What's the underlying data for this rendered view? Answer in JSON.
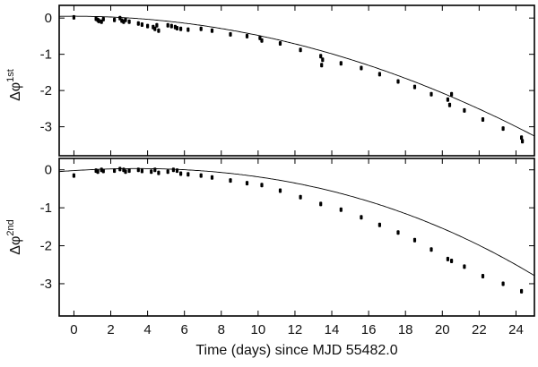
{
  "chart_data": [
    {
      "type": "scatter",
      "panel": "top",
      "ylabel": "Δφ",
      "ylabel_sup": "1st",
      "xlim": [
        -0.8,
        25
      ],
      "ylim": [
        -3.8,
        0.35
      ],
      "yticks": [
        0,
        -1,
        -2,
        -3
      ],
      "ytick_labels": [
        "0",
        "-1",
        "-2",
        "-3"
      ],
      "model": {
        "type": "quadratic",
        "a": -0.00529,
        "b": 0,
        "c": 0.05
      },
      "series": [
        {
          "name": "Δφ 1st",
          "points": [
            [
              0.0,
              0.02
            ],
            [
              1.2,
              -0.02
            ],
            [
              1.3,
              -0.05
            ],
            [
              1.35,
              -0.08
            ],
            [
              1.5,
              -0.1
            ],
            [
              1.6,
              -0.03
            ],
            [
              2.2,
              -0.05
            ],
            [
              2.5,
              0.0
            ],
            [
              2.6,
              -0.07
            ],
            [
              2.7,
              -0.1
            ],
            [
              2.8,
              -0.05
            ],
            [
              3.0,
              -0.1
            ],
            [
              3.5,
              -0.15
            ],
            [
              3.7,
              -0.18
            ],
            [
              4.0,
              -0.22
            ],
            [
              4.3,
              -0.25
            ],
            [
              4.4,
              -0.3
            ],
            [
              4.5,
              -0.2
            ],
            [
              4.6,
              -0.35
            ],
            [
              5.1,
              -0.2
            ],
            [
              5.3,
              -0.22
            ],
            [
              5.5,
              -0.25
            ],
            [
              5.6,
              -0.28
            ],
            [
              5.8,
              -0.3
            ],
            [
              6.2,
              -0.32
            ],
            [
              6.9,
              -0.3
            ],
            [
              7.5,
              -0.35
            ],
            [
              8.5,
              -0.45
            ],
            [
              9.4,
              -0.5
            ],
            [
              10.1,
              -0.55
            ],
            [
              10.2,
              -0.62
            ],
            [
              11.2,
              -0.7
            ],
            [
              12.3,
              -0.88
            ],
            [
              13.4,
              -1.05
            ],
            [
              13.45,
              -1.3
            ],
            [
              13.5,
              -1.15
            ],
            [
              14.5,
              -1.25
            ],
            [
              15.6,
              -1.38
            ],
            [
              16.6,
              -1.55
            ],
            [
              17.6,
              -1.75
            ],
            [
              18.5,
              -1.9
            ],
            [
              19.4,
              -2.1
            ],
            [
              20.3,
              -2.25
            ],
            [
              20.4,
              -2.4
            ],
            [
              20.5,
              -2.1
            ],
            [
              21.2,
              -2.55
            ],
            [
              22.2,
              -2.8
            ],
            [
              23.3,
              -3.05
            ],
            [
              24.3,
              -3.3
            ],
            [
              24.35,
              -3.4
            ]
          ]
        }
      ]
    },
    {
      "type": "scatter",
      "panel": "bottom",
      "xlabel": "Time (days) since MJD 55482.0",
      "ylabel": "Δφ",
      "ylabel_sup": "2nd",
      "xlim": [
        -0.8,
        25
      ],
      "ylim": [
        -3.85,
        0.3
      ],
      "xticks": [
        0,
        2,
        4,
        6,
        8,
        10,
        12,
        14,
        16,
        18,
        20,
        22,
        24
      ],
      "xtick_labels": [
        "0",
        "2",
        "4",
        "6",
        "8",
        "10",
        "12",
        "14",
        "16",
        "18",
        "20",
        "22",
        "24"
      ],
      "yticks": [
        0,
        -1,
        -2,
        -3
      ],
      "ytick_labels": [
        "0",
        "-1",
        "-2",
        "-3"
      ],
      "model": {
        "type": "cubic",
        "a": -6.5e-05,
        "b": -0.004,
        "c": 0.03,
        "d": -0.02
      },
      "series": [
        {
          "name": "Δφ 2nd",
          "points": [
            [
              0.0,
              -0.15
            ],
            [
              1.2,
              -0.02
            ],
            [
              1.3,
              -0.05
            ],
            [
              1.5,
              0.0
            ],
            [
              1.6,
              -0.03
            ],
            [
              2.2,
              -0.02
            ],
            [
              2.5,
              0.02
            ],
            [
              2.7,
              0.0
            ],
            [
              2.8,
              -0.05
            ],
            [
              3.0,
              -0.02
            ],
            [
              3.5,
              0.0
            ],
            [
              3.7,
              -0.03
            ],
            [
              4.2,
              -0.05
            ],
            [
              4.4,
              0.0
            ],
            [
              4.6,
              -0.08
            ],
            [
              5.1,
              -0.05
            ],
            [
              5.4,
              0.0
            ],
            [
              5.6,
              -0.02
            ],
            [
              5.8,
              -0.1
            ],
            [
              6.2,
              -0.12
            ],
            [
              6.9,
              -0.15
            ],
            [
              7.5,
              -0.2
            ],
            [
              8.5,
              -0.28
            ],
            [
              9.4,
              -0.35
            ],
            [
              10.2,
              -0.4
            ],
            [
              11.2,
              -0.55
            ],
            [
              12.3,
              -0.72
            ],
            [
              13.4,
              -0.9
            ],
            [
              14.5,
              -1.05
            ],
            [
              15.6,
              -1.25
            ],
            [
              16.6,
              -1.45
            ],
            [
              17.6,
              -1.65
            ],
            [
              18.5,
              -1.85
            ],
            [
              19.4,
              -2.1
            ],
            [
              20.3,
              -2.35
            ],
            [
              20.5,
              -2.4
            ],
            [
              21.2,
              -2.55
            ],
            [
              22.2,
              -2.8
            ],
            [
              23.3,
              -3.0
            ],
            [
              24.3,
              -3.2
            ]
          ]
        }
      ]
    }
  ]
}
